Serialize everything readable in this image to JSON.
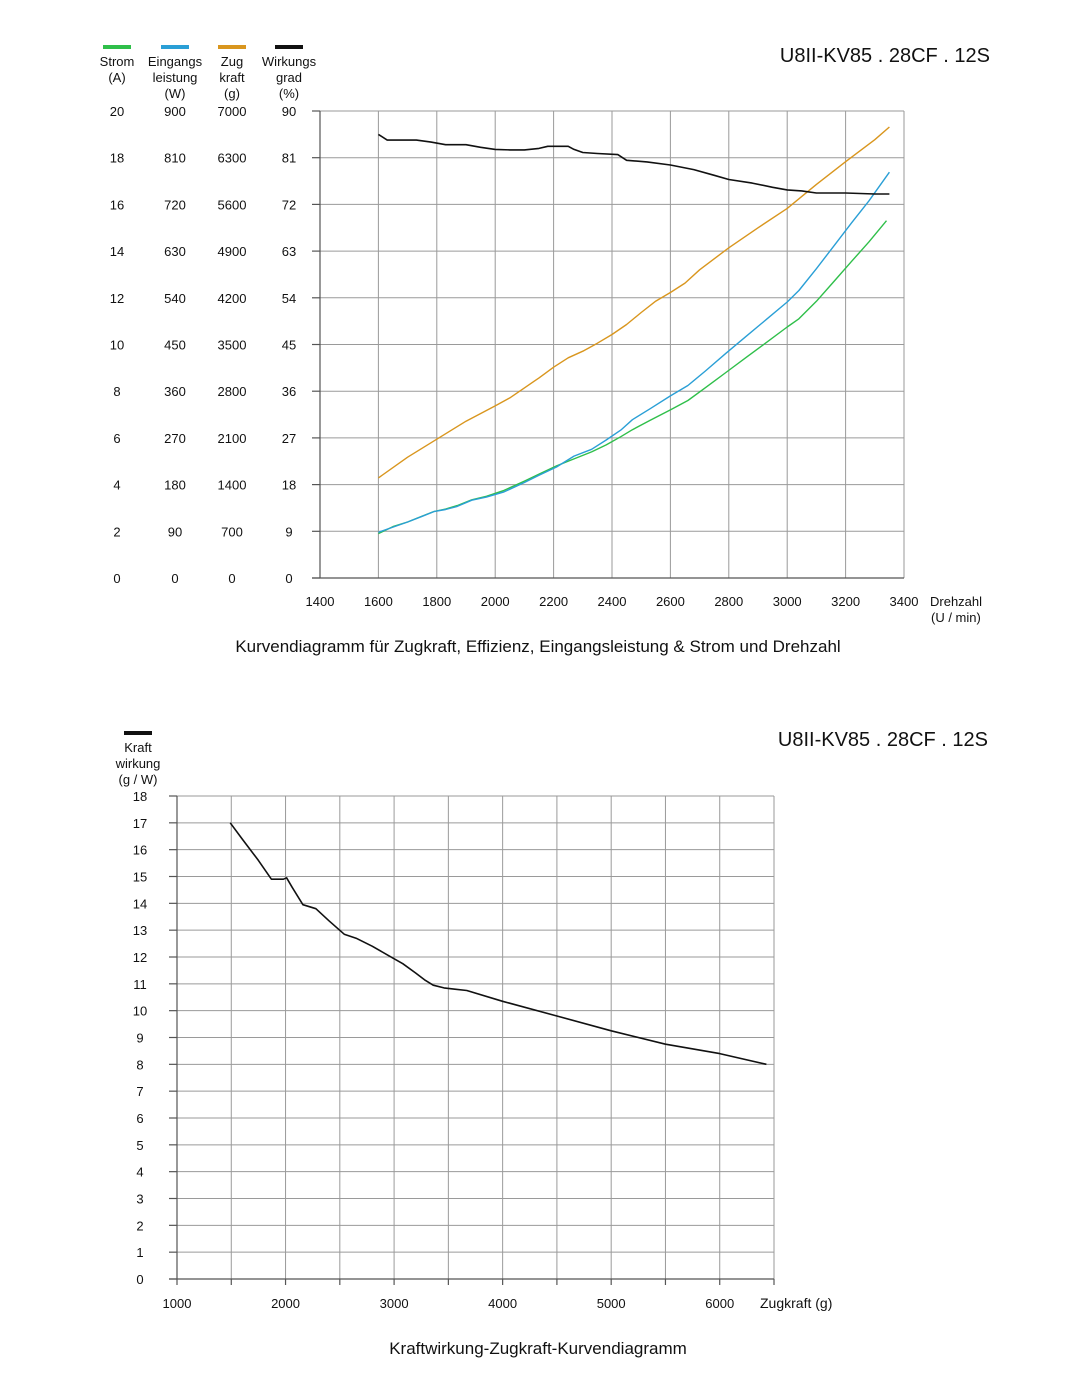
{
  "colors": {
    "strom": "#2fbf4a",
    "eingangsleistung": "#2a9fd6",
    "zugkraft": "#d9961e",
    "wirkungsgrad": "#111111",
    "kraftwirkung": "#111111",
    "grid": "#9a9a9a"
  },
  "chart_data": [
    {
      "type": "line",
      "model_label": "U8II-KV85 . 28CF . 12S",
      "title": "Kurvendiagramm für Zugkraft, Effizienz, Eingangsleistung &  Strom und Drehzahl",
      "xlabel": "Drehzahl",
      "xlabel_unit": "(U / min)",
      "xlim": [
        1400,
        3400
      ],
      "x_ticks": [
        "1400",
        "1600",
        "1800",
        "2000",
        "2200",
        "2400",
        "2600",
        "2800",
        "3000",
        "3200",
        "3400"
      ],
      "grid": true,
      "legend_position": "top-left",
      "y_axes": [
        {
          "key": "strom",
          "label_lines": [
            "Strom",
            "(A)"
          ],
          "ylim": [
            0,
            20
          ],
          "ticks": [
            "0",
            "2",
            "4",
            "6",
            "8",
            "10",
            "12",
            "14",
            "16",
            "18",
            "20"
          ]
        },
        {
          "key": "eingangsleistung",
          "label_lines": [
            "Eingangs",
            "leistung",
            "(W)"
          ],
          "ylim": [
            0,
            900
          ],
          "ticks": [
            "0",
            "90",
            "180",
            "270",
            "360",
            "450",
            "540",
            "630",
            "720",
            "810",
            "900"
          ]
        },
        {
          "key": "zugkraft",
          "label_lines": [
            "Zug",
            "kraft",
            "(g)"
          ],
          "ylim": [
            0,
            7000
          ],
          "ticks": [
            "0",
            "700",
            "1400",
            "2100",
            "2800",
            "3500",
            "4200",
            "4900",
            "5600",
            "6300",
            "7000"
          ]
        },
        {
          "key": "wirkungsgrad",
          "label_lines": [
            "Wirkungs",
            "grad",
            "(%)"
          ],
          "ylim": [
            0,
            90
          ],
          "ticks": [
            "0",
            "9",
            "18",
            "27",
            "36",
            "45",
            "54",
            "63",
            "72",
            "81",
            "90"
          ]
        }
      ],
      "series": [
        {
          "key": "strom",
          "name": "Strom",
          "axis": 0,
          "x": [
            1600,
            1650,
            1700,
            1750,
            1790,
            1830,
            1870,
            1920,
            1970,
            2030,
            2100,
            2150,
            2210,
            2270,
            2330,
            2380,
            2430,
            2470,
            2530,
            2600,
            2660,
            2720,
            2790,
            2860,
            2930,
            3000,
            3040,
            3100,
            3160,
            3220,
            3280,
            3340
          ],
          "y": [
            1.9,
            2.2,
            2.4,
            2.65,
            2.85,
            2.95,
            3.1,
            3.35,
            3.5,
            3.75,
            4.15,
            4.45,
            4.8,
            5.1,
            5.4,
            5.7,
            6.05,
            6.35,
            6.75,
            7.2,
            7.6,
            8.15,
            8.8,
            9.45,
            10.1,
            10.75,
            11.1,
            11.85,
            12.7,
            13.55,
            14.4,
            15.3
          ]
        },
        {
          "key": "eingangsleistung",
          "name": "Eingangsleistung",
          "axis": 1,
          "x": [
            1600,
            1650,
            1700,
            1750,
            1790,
            1830,
            1870,
            1920,
            1970,
            2030,
            2100,
            2150,
            2210,
            2270,
            2330,
            2380,
            2430,
            2470,
            2530,
            2600,
            2660,
            2720,
            2790,
            2860,
            2930,
            3000,
            3040,
            3100,
            3160,
            3220,
            3280,
            3350
          ],
          "y": [
            88,
            98,
            108,
            119,
            128,
            132,
            138,
            150,
            156,
            166,
            184,
            198,
            214,
            235,
            248,
            266,
            285,
            305,
            326,
            351,
            371,
            399,
            433,
            466,
            499,
            532,
            554,
            596,
            640,
            684,
            727,
            782
          ]
        },
        {
          "key": "zugkraft",
          "name": "Zugkraft",
          "axis": 2,
          "x": [
            1600,
            1700,
            1800,
            1900,
            2000,
            2050,
            2100,
            2150,
            2200,
            2250,
            2300,
            2350,
            2400,
            2450,
            2500,
            2550,
            2600,
            2650,
            2700,
            2800,
            2900,
            3000,
            3100,
            3200,
            3300,
            3350
          ],
          "y": [
            1500,
            1810,
            2080,
            2350,
            2580,
            2700,
            2850,
            3000,
            3160,
            3300,
            3400,
            3520,
            3650,
            3800,
            3980,
            4150,
            4280,
            4420,
            4620,
            4950,
            5250,
            5540,
            5900,
            6240,
            6570,
            6760
          ]
        },
        {
          "key": "wirkungsgrad",
          "name": "Wirkungsgrad",
          "axis": 3,
          "x": [
            1600,
            1630,
            1730,
            1780,
            1830,
            1900,
            1950,
            2000,
            2050,
            2100,
            2150,
            2180,
            2250,
            2270,
            2300,
            2350,
            2420,
            2450,
            2520,
            2600,
            2680,
            2750,
            2800,
            2880,
            2950,
            3000,
            3050,
            3100,
            3200,
            3250,
            3300,
            3350
          ],
          "y": [
            85.5,
            84.4,
            84.4,
            84.0,
            83.5,
            83.5,
            83.0,
            82.6,
            82.5,
            82.5,
            82.8,
            83.2,
            83.2,
            82.6,
            82.0,
            81.8,
            81.6,
            80.5,
            80.2,
            79.6,
            78.7,
            77.6,
            76.8,
            76.1,
            75.3,
            74.8,
            74.6,
            74.2,
            74.2,
            74.1,
            74.0,
            74.0
          ]
        }
      ]
    },
    {
      "type": "line",
      "model_label": "U8II-KV85 . 28CF . 12S",
      "title": "Kraftwirkung-Zugkraft-Kurvendiagramm",
      "ylabel_lines": [
        "Kraft",
        "wirkung",
        "(g / W)"
      ],
      "xlabel": "Zugkraft (g)",
      "xlim": [
        1000,
        6500
      ],
      "ylim": [
        0,
        18
      ],
      "x_ticks": [
        "1000",
        "2000",
        "3000",
        "4000",
        "5000",
        "6000"
      ],
      "y_ticks": [
        "0",
        "1",
        "2",
        "3",
        "4",
        "5",
        "6",
        "7",
        "8",
        "9",
        "10",
        "11",
        "12",
        "13",
        "14",
        "15",
        "16",
        "17",
        "18"
      ],
      "grid": true,
      "legend_position": "top-left",
      "series": [
        {
          "key": "kraftwirkung",
          "name": "Kraftwirkung",
          "x": [
            1490,
            1600,
            1750,
            1870,
            1980,
            2010,
            2060,
            2160,
            2280,
            2400,
            2540,
            2650,
            2800,
            2950,
            3080,
            3200,
            3280,
            3360,
            3460,
            3560,
            3670,
            4000,
            4500,
            5000,
            5500,
            6000,
            6430
          ],
          "y": [
            17.0,
            16.4,
            15.6,
            14.9,
            14.9,
            14.95,
            14.6,
            13.95,
            13.8,
            13.35,
            12.85,
            12.7,
            12.4,
            12.05,
            11.75,
            11.4,
            11.15,
            10.95,
            10.85,
            10.8,
            10.75,
            10.35,
            9.8,
            9.25,
            8.75,
            8.4,
            8.0
          ]
        }
      ]
    }
  ]
}
